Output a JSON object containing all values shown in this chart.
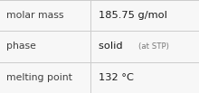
{
  "rows": [
    {
      "label": "molar mass",
      "value": "185.75 g/mol",
      "value_suffix": null
    },
    {
      "label": "phase",
      "value": "solid",
      "value_suffix": "(at STP)"
    },
    {
      "label": "melting point",
      "value": "132 °C",
      "value_suffix": null
    }
  ],
  "bg_color": "#f7f7f7",
  "border_color": "#cccccc",
  "label_color": "#404040",
  "value_color": "#1a1a1a",
  "suffix_color": "#777777",
  "label_fontsize": 7.8,
  "value_fontsize": 8.2,
  "suffix_fontsize": 6.2,
  "col_split": 0.455,
  "figsize": [
    2.2,
    1.03
  ],
  "dpi": 100
}
